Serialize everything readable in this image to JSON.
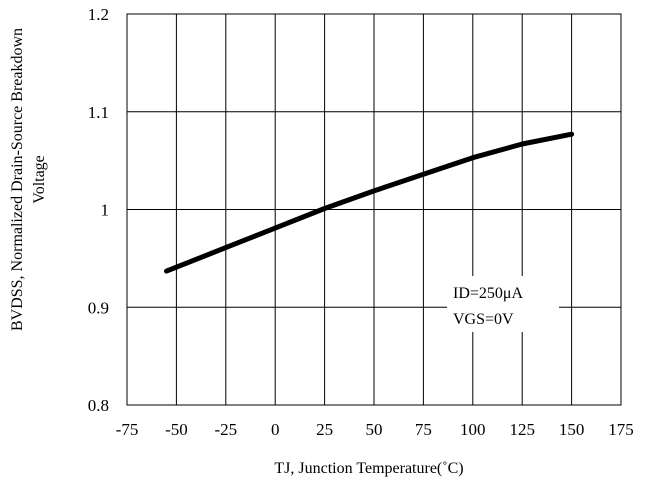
{
  "chart_data": {
    "type": "line",
    "title": "",
    "xlabel": "TJ, Junction Temperature(˚C)",
    "ylabel_line1": "BVDSS, Normalized Drain-Source Breakdown",
    "ylabel_line2": "Voltage",
    "xlim": [
      -75,
      175
    ],
    "ylim": [
      0.8,
      1.2
    ],
    "x_ticks": [
      -75,
      -50,
      -25,
      0,
      25,
      50,
      75,
      100,
      125,
      150,
      175
    ],
    "x_tick_labels": [
      "-75",
      "-50",
      "-25",
      "0",
      "25",
      "50",
      "75",
      "100",
      "125",
      "150",
      "175"
    ],
    "y_ticks": [
      0.8,
      0.9,
      1.0,
      1.1,
      1.2
    ],
    "y_tick_labels": [
      "0.8",
      "0.9",
      "1",
      "1.1",
      "1.2"
    ],
    "grid": true,
    "series": [
      {
        "x": [
          -55,
          -25,
          0,
          25,
          50,
          75,
          100,
          125,
          150
        ],
        "y": [
          0.937,
          0.961,
          0.981,
          1.001,
          1.019,
          1.036,
          1.053,
          1.067,
          1.077
        ],
        "color": "#000000"
      }
    ],
    "annotation": {
      "line1": "ID=250μA",
      "line2": "VGS=0V"
    }
  }
}
